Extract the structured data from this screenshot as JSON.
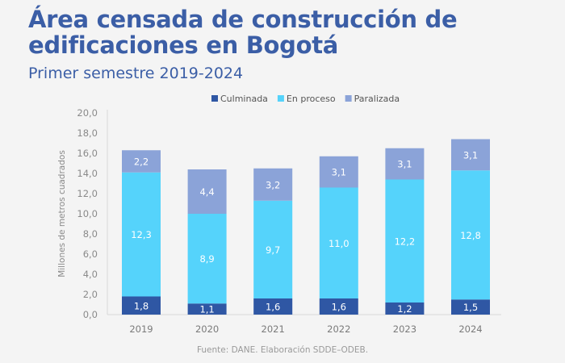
{
  "header": {
    "title_line1": "Área censada de construcción de",
    "title_line2": "edificaciones en Bogotá",
    "subtitle": "Primer semestre 2019-2024"
  },
  "footer": {
    "source": "Fuente: DANE. Elaboración SDDE–ODEB."
  },
  "chart_data": {
    "type": "bar",
    "stacked": true,
    "title": "Área censada de construcción de edificaciones en Bogotá",
    "subtitle": "Primer semestre 2019-2024",
    "xlabel": "",
    "ylabel": "Millones de metros cuadrados",
    "ylim": [
      0,
      20
    ],
    "yticks": [
      "0,0",
      "2,0",
      "4,0",
      "6,0",
      "8,0",
      "10,0",
      "12,0",
      "14,0",
      "16,0",
      "18,0",
      "20,0"
    ],
    "grid": false,
    "legend_position": "top-center",
    "categories": [
      "2019",
      "2020",
      "2021",
      "2022",
      "2023",
      "2024"
    ],
    "series": [
      {
        "name": "Culminada",
        "color": "#2f57a4",
        "values": [
          1.8,
          1.1,
          1.6,
          1.6,
          1.2,
          1.5
        ],
        "labels": [
          "1,8",
          "1,1",
          "1,6",
          "1,6",
          "1,2",
          "1,5"
        ]
      },
      {
        "name": "En proceso",
        "color": "#55d3fb",
        "values": [
          12.3,
          8.9,
          9.7,
          11.0,
          12.2,
          12.8
        ],
        "labels": [
          "12,3",
          "8,9",
          "9,7",
          "11,0",
          "12,2",
          "12,8"
        ]
      },
      {
        "name": "Paralizada",
        "color": "#8ba3d8",
        "values": [
          2.2,
          4.4,
          3.2,
          3.1,
          3.1,
          3.1
        ],
        "labels": [
          "2,2",
          "4,4",
          "3,2",
          "3,1",
          "3,1",
          "3,1"
        ]
      }
    ]
  }
}
